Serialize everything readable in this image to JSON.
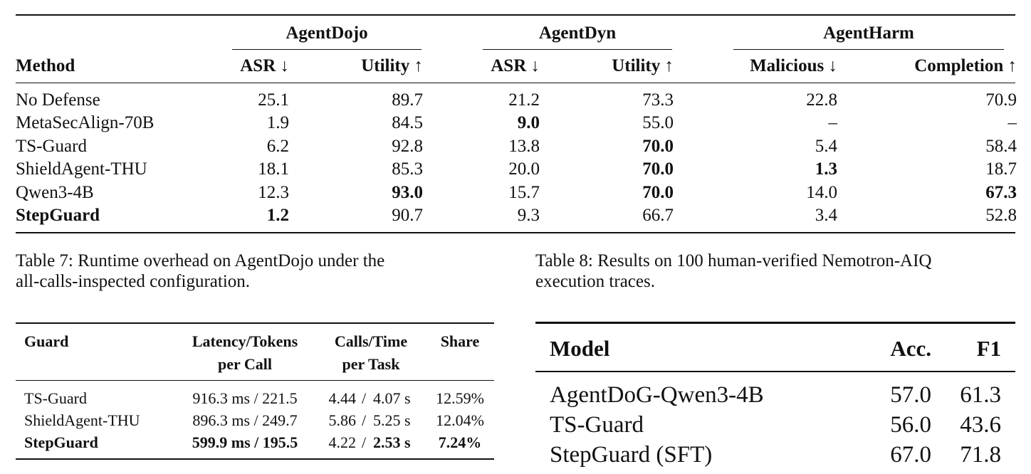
{
  "main_table": {
    "groups": [
      "AgentDojo",
      "AgentDyn",
      "AgentHarm"
    ],
    "columns": [
      "Method",
      "ASR ↓",
      "Utility ↑",
      "ASR ↓",
      "Utility ↑",
      "Malicious ↓",
      "Completion ↑"
    ],
    "rows": [
      {
        "method": "No Defense",
        "values": [
          "25.1",
          "89.7",
          "21.2",
          "73.3",
          "22.8",
          "70.9"
        ],
        "bold_method": false,
        "bold": [
          false,
          false,
          false,
          false,
          false,
          false
        ]
      },
      {
        "method": "MetaSecAlign-70B",
        "values": [
          "1.9",
          "84.5",
          "9.0",
          "55.0",
          "–",
          "–"
        ],
        "bold_method": false,
        "bold": [
          false,
          false,
          true,
          false,
          false,
          false
        ]
      },
      {
        "method": "TS-Guard",
        "values": [
          "6.2",
          "92.8",
          "13.8",
          "70.0",
          "5.4",
          "58.4"
        ],
        "bold_method": false,
        "bold": [
          false,
          false,
          false,
          true,
          false,
          false
        ]
      },
      {
        "method": "ShieldAgent-THU",
        "values": [
          "18.1",
          "85.3",
          "20.0",
          "70.0",
          "1.3",
          "18.7"
        ],
        "bold_method": false,
        "bold": [
          false,
          false,
          false,
          true,
          true,
          false
        ]
      },
      {
        "method": "Qwen3-4B",
        "values": [
          "12.3",
          "93.0",
          "15.7",
          "70.0",
          "14.0",
          "67.3"
        ],
        "bold_method": false,
        "bold": [
          false,
          true,
          false,
          true,
          false,
          true
        ]
      },
      {
        "method": "StepGuard",
        "values": [
          "1.2",
          "90.7",
          "9.3",
          "66.7",
          "3.4",
          "52.8"
        ],
        "bold_method": true,
        "bold": [
          true,
          false,
          false,
          false,
          false,
          false
        ]
      }
    ]
  },
  "captions": {
    "table7": {
      "line1": "Table 7:  Runtime overhead on AgentDojo under the",
      "line2": "all-calls-inspected configuration."
    },
    "table8": {
      "line1": "Table 8:  Results on 100 human-verified Nemotron-AIQ",
      "line2": "execution traces."
    }
  },
  "table7": {
    "headers": {
      "guard": "Guard",
      "latency_1": "Latency/Tokens",
      "latency_2": "per Call",
      "calls_1": "Calls/Time",
      "calls_2": "per Task",
      "share": "Share"
    },
    "rows": [
      {
        "guard": "TS-Guard",
        "latency": "916.3 ms / 221.5",
        "calls_a": "4.44",
        "calls_sep": "/",
        "calls_b": "4.07 s",
        "share": "12.59%"
      },
      {
        "guard": "ShieldAgent-THU",
        "latency": "896.3 ms / 249.7",
        "calls_a": "5.86",
        "calls_sep": "/",
        "calls_b": "5.25 s",
        "share": "12.04%"
      },
      {
        "guard": "StepGuard",
        "latency": "599.9 ms / 195.5",
        "calls_a": "4.22",
        "calls_sep": "/",
        "calls_b": "2.53 s",
        "share": "7.24%"
      }
    ]
  },
  "table8": {
    "headers": {
      "model": "Model",
      "acc": "Acc.",
      "f1": "F1"
    },
    "rows": [
      {
        "model": "AgentDoG-Qwen3-4B",
        "acc": "57.0",
        "f1": "61.3"
      },
      {
        "model": "TS-Guard",
        "acc": "56.0",
        "f1": "43.6"
      },
      {
        "model": "StepGuard (SFT)",
        "acc": "67.0",
        "f1": "71.8"
      }
    ]
  }
}
